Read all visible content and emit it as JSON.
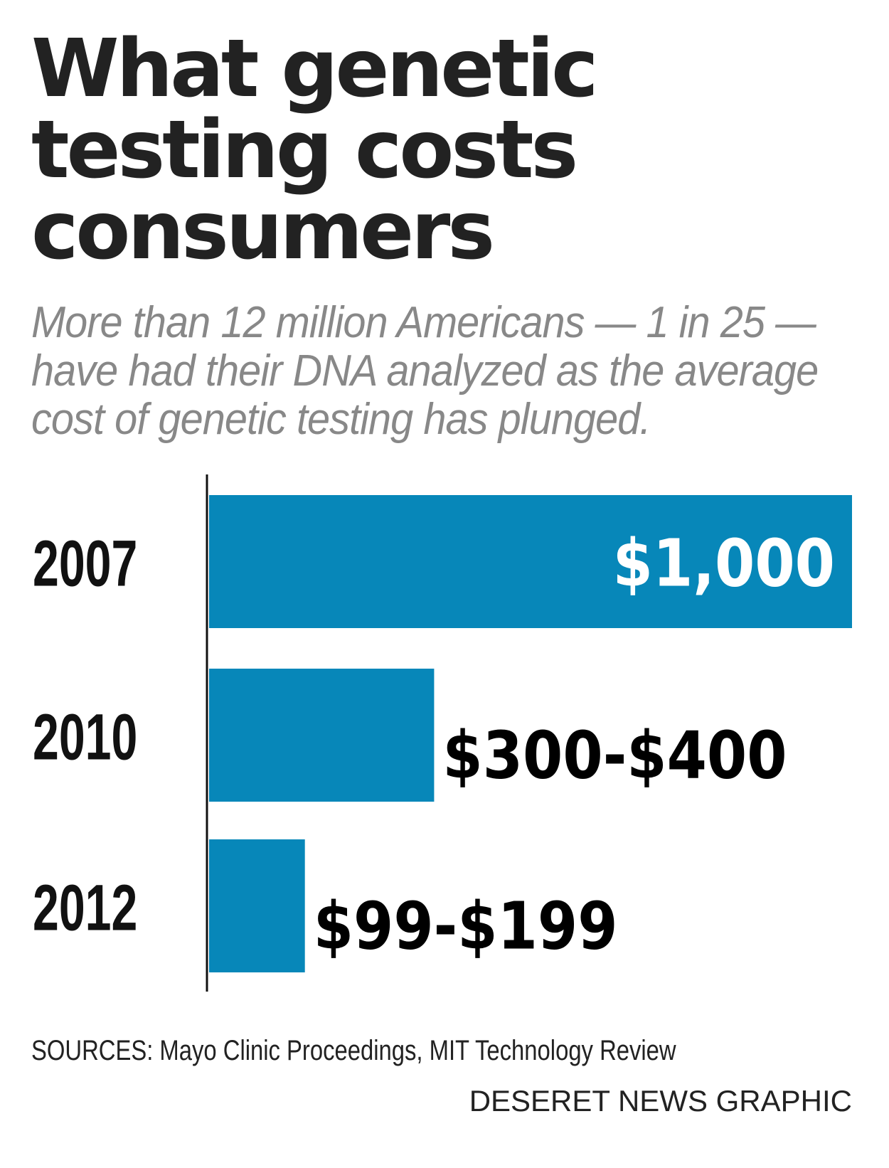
{
  "chart_data": {
    "type": "bar",
    "orientation": "horizontal",
    "title": "What genetic testing costs consumers",
    "subtitle": "More than 12 million Americans — 1 in 25 — have had their DNA analyzed as the average cost of genetic testing has plunged.",
    "categories": [
      "2007",
      "2010",
      "2012"
    ],
    "values": [
      1000,
      350,
      149
    ],
    "value_labels": [
      "$1,000",
      "$300-$400",
      "$99-$199"
    ],
    "ranges": [
      [
        1000,
        1000
      ],
      [
        300,
        400
      ],
      [
        99,
        199
      ]
    ],
    "xlim": [
      0,
      1000
    ],
    "grid": false,
    "bar_color": "#0787b9",
    "sources": "SOURCES: Mayo Clinic Proceedings, MIT Technology Review",
    "credit": "DESERET NEWS GRAPHIC"
  }
}
